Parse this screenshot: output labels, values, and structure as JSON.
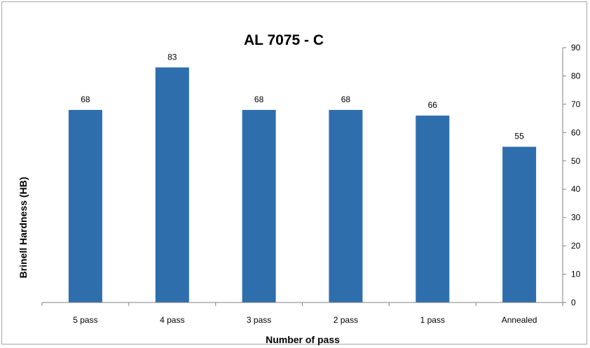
{
  "chart_data": {
    "type": "bar",
    "title": "AL 7075 - C",
    "xlabel": "Number of pass",
    "ylabel": "Brinell Hardness  (HB)",
    "categories": [
      "5 pass",
      "4 pass",
      "3 pass",
      "2 pass",
      "1 pass",
      "Annealed"
    ],
    "values": [
      68,
      83,
      68,
      68,
      66,
      55
    ],
    "data_labels": [
      "68",
      "83",
      "68",
      "68",
      "66",
      "55"
    ],
    "ylim": [
      0,
      90
    ],
    "yticks": [
      "0",
      "10",
      "20",
      "30",
      "40",
      "50",
      "60",
      "70",
      "80",
      "90"
    ],
    "y_axis_side": "right",
    "grid": false,
    "legend": "none",
    "bar_color": "#2e6ead"
  }
}
